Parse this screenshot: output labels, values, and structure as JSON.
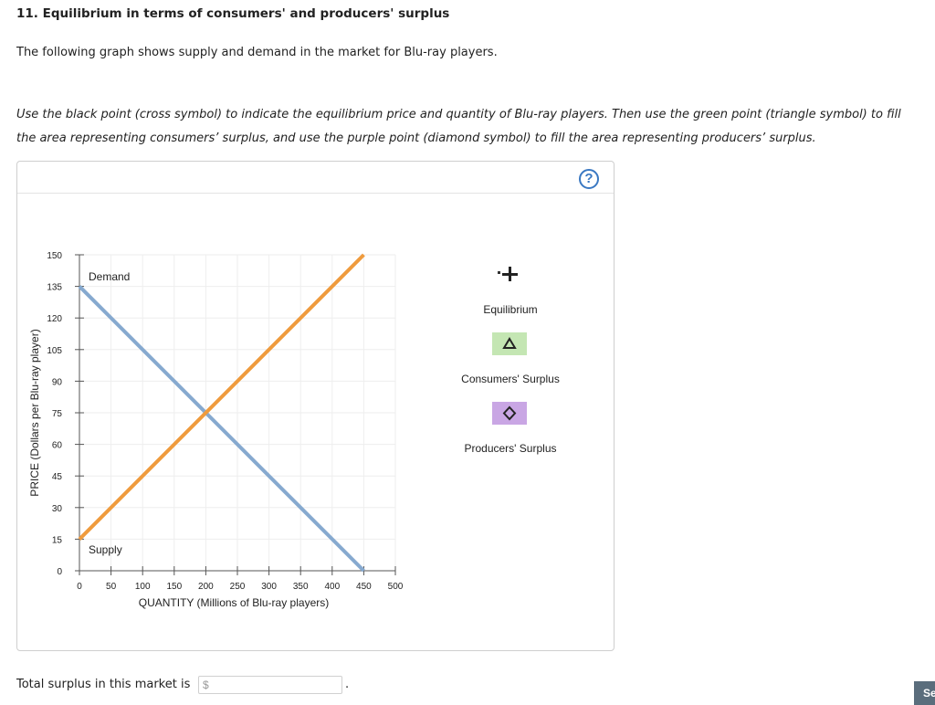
{
  "question": {
    "title": "11. Equilibrium in terms of consumers' and producers' surplus",
    "intro": "The following graph shows supply and demand in the market for Blu-ray players.",
    "instructions": "Use the black point (cross symbol) to indicate the equilibrium price and quantity of Blu-ray players. Then use the green point (triangle symbol) to fill the area representing consumers’ surplus, and use the purple point (diamond symbol) to fill the area representing producers’ surplus."
  },
  "help_label": "?",
  "legend": {
    "equilibrium": "Equilibrium",
    "consumers_surplus": "Consumers' Surplus",
    "producers_surplus": "Producers' Surplus"
  },
  "colors": {
    "demand": "#86a9cf",
    "supply": "#ef9b3d",
    "consumer_fill": "#c4e6b3",
    "producer_fill": "#c9a6e4"
  },
  "chart_data": {
    "type": "line",
    "xlabel": "QUANTITY (Millions of Blu-ray players)",
    "ylabel": "PRICE (Dollars per Blu-ray player)",
    "xlim": [
      0,
      500
    ],
    "ylim": [
      0,
      150
    ],
    "x_ticks": [
      0,
      50,
      100,
      150,
      200,
      250,
      300,
      350,
      400,
      450,
      500
    ],
    "y_ticks": [
      0,
      15,
      30,
      45,
      60,
      75,
      90,
      105,
      120,
      135,
      150
    ],
    "grid": true,
    "series": [
      {
        "name": "Demand",
        "x": [
          0,
          450
        ],
        "y": [
          135,
          0
        ]
      },
      {
        "name": "Supply",
        "x": [
          0,
          450
        ],
        "y": [
          15,
          150
        ]
      }
    ]
  },
  "footer": {
    "total_label": "Total surplus in this market is",
    "total_placeholder": "$",
    "period": ".",
    "submit_label": "Se"
  }
}
